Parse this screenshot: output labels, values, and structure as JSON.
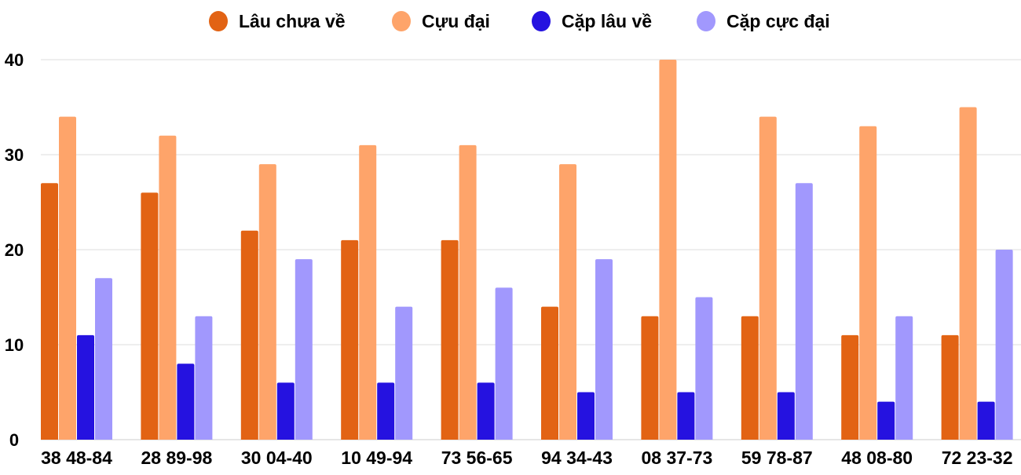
{
  "chart_data": {
    "type": "bar",
    "title": "",
    "xlabel": "",
    "ylabel": "",
    "ylim": [
      0,
      40
    ],
    "yticks": [
      0,
      10,
      20,
      30,
      40
    ],
    "grid": true,
    "legend_placement": "top",
    "categories": [
      "38 48-84",
      "28 89-98",
      "30 04-40",
      "10 49-94",
      "73 56-65",
      "94 34-43",
      "08 37-73",
      "59 78-87",
      "48 08-80",
      "72 23-32"
    ],
    "series": [
      {
        "name": "Lâu chưa về",
        "color": "#e26314",
        "values": [
          27,
          26,
          22,
          21,
          21,
          14,
          13,
          13,
          11,
          11
        ]
      },
      {
        "name": "Cựu đại",
        "color": "#fea46a",
        "values": [
          34,
          32,
          29,
          31,
          31,
          29,
          40,
          34,
          33,
          35
        ]
      },
      {
        "name": "Cặp lâu về",
        "color": "#2512e0",
        "values": [
          11,
          8,
          6,
          6,
          6,
          5,
          5,
          5,
          4,
          4
        ]
      },
      {
        "name": "Cặp cực đại",
        "color": "#a198fd",
        "values": [
          17,
          13,
          19,
          14,
          16,
          19,
          15,
          27,
          13,
          20
        ]
      }
    ]
  }
}
